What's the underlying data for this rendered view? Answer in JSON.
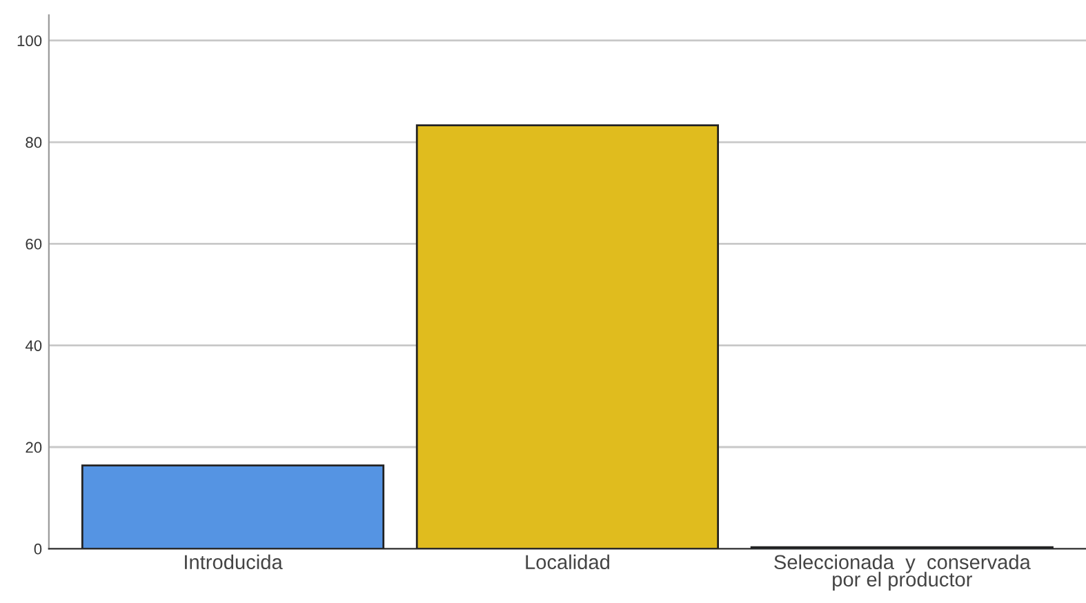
{
  "chart_data": {
    "type": "bar",
    "categories": [
      "Introducida",
      "Localidad",
      "Seleccionada  y  conservada\npor el productor"
    ],
    "values": [
      16.4,
      83.3,
      0.3
    ],
    "colors": [
      "#5594e3",
      "#e0bc1e",
      "#5594e3"
    ],
    "ylim": [
      0,
      105
    ],
    "yticks": [
      0,
      20,
      40,
      60,
      80,
      100
    ],
    "grid": "y"
  }
}
